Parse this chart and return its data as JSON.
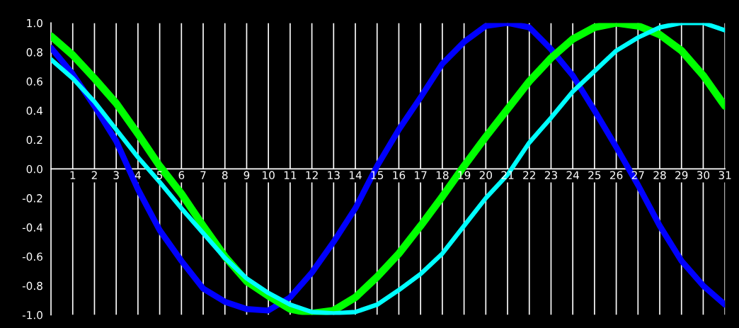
{
  "chart_data": {
    "type": "line",
    "x": [
      0,
      1,
      2,
      3,
      4,
      5,
      6,
      7,
      8,
      9,
      10,
      11,
      12,
      13,
      14,
      15,
      16,
      17,
      18,
      19,
      20,
      21,
      22,
      23,
      24,
      25,
      26,
      27,
      28,
      29,
      30,
      31
    ],
    "series": [
      {
        "color": "#0000ff",
        "values": [
          0.83,
          0.65,
          0.43,
          0.19,
          -0.14,
          -0.42,
          -0.63,
          -0.82,
          -0.91,
          -0.96,
          -0.97,
          -0.88,
          -0.71,
          -0.5,
          -0.27,
          0.02,
          0.27,
          0.49,
          0.72,
          0.87,
          0.98,
          1.0,
          0.97,
          0.82,
          0.64,
          0.4,
          0.15,
          -0.11,
          -0.39,
          -0.63,
          -0.8,
          -0.93
        ]
      },
      {
        "color": "#00ff00",
        "values": [
          0.91,
          0.78,
          0.62,
          0.45,
          0.24,
          0.02,
          -0.17,
          -0.39,
          -0.6,
          -0.77,
          -0.87,
          -0.96,
          -0.99,
          -0.97,
          -0.88,
          -0.74,
          -0.58,
          -0.39,
          -0.19,
          0.02,
          0.22,
          0.41,
          0.6,
          0.76,
          0.89,
          0.97,
          1.0,
          0.98,
          0.92,
          0.81,
          0.64,
          0.43
        ]
      },
      {
        "color": "#00ffff",
        "values": [
          0.75,
          0.62,
          0.46,
          0.27,
          0.08,
          -0.09,
          -0.27,
          -0.44,
          -0.61,
          -0.75,
          -0.85,
          -0.93,
          -0.98,
          -0.99,
          -0.98,
          -0.93,
          -0.83,
          -0.72,
          -0.58,
          -0.39,
          -0.2,
          -0.04,
          0.18,
          0.35,
          0.53,
          0.67,
          0.81,
          0.9,
          0.97,
          1.0,
          1.0,
          0.95
        ]
      }
    ],
    "xlim": [
      0,
      31
    ],
    "xticks": [
      1,
      2,
      3,
      4,
      5,
      6,
      7,
      8,
      9,
      10,
      11,
      12,
      13,
      14,
      15,
      16,
      17,
      18,
      19,
      20,
      21,
      22,
      23,
      24,
      25,
      26,
      27,
      28,
      29,
      30,
      31
    ],
    "ylim": [
      -1,
      1
    ],
    "yticks": [
      {
        "value": 1,
        "label": "1.0"
      },
      {
        "value": 0.8,
        "label": "0.8"
      },
      {
        "value": 0.6,
        "label": "0.6"
      },
      {
        "value": 0.4,
        "label": "0.4"
      },
      {
        "value": 0.2,
        "label": "0.2"
      },
      {
        "value": 0,
        "label": "0.0"
      },
      {
        "value": -0.2,
        "label": "-0.2"
      },
      {
        "value": -0.4,
        "label": "-0.4"
      },
      {
        "value": -0.6,
        "label": "-0.6"
      },
      {
        "value": -0.8,
        "label": "-0.8"
      },
      {
        "value": -1,
        "label": "-1.0"
      }
    ],
    "grid": "x",
    "marker": "none",
    "line_style": "solid"
  }
}
